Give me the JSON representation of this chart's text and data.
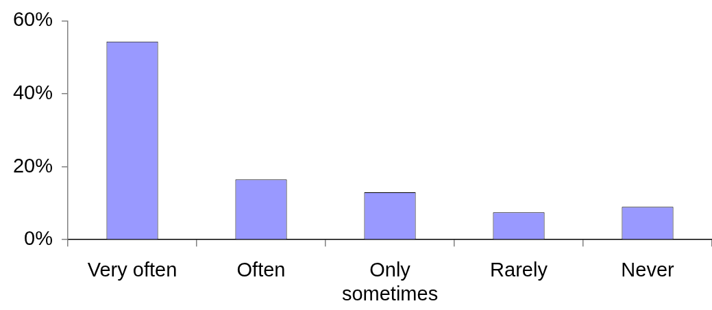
{
  "chart_data": {
    "type": "bar",
    "categories": [
      "Very often",
      "Often",
      "Only sometimes",
      "Rarely",
      "Never"
    ],
    "values": [
      54.3,
      16.5,
      13,
      7.5,
      9
    ],
    "color": "#9999ff",
    "ylim": [
      0,
      60
    ],
    "yticks": [
      {
        "value": 0,
        "label": "0%"
      },
      {
        "value": 20,
        "label": "20%"
      },
      {
        "value": 40,
        "label": "40%"
      },
      {
        "value": 60,
        "label": "60%"
      }
    ]
  }
}
